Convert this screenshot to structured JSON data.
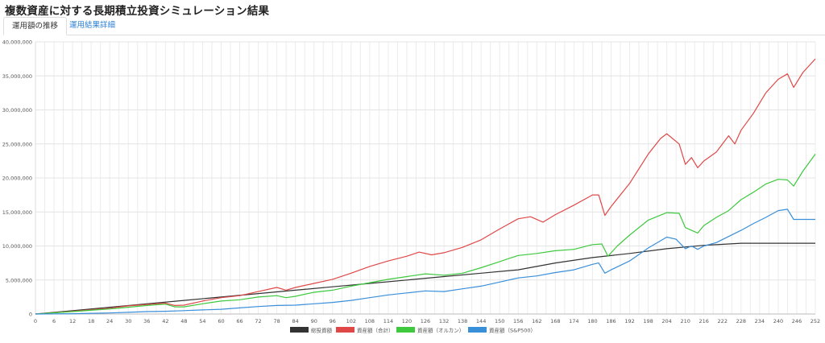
{
  "page": {
    "title": "複数資産に対する長期積立投資シミュレーション結果"
  },
  "tabs": [
    {
      "label": "運用額の推移",
      "active": true
    },
    {
      "label": "運用結果詳細",
      "active": false
    }
  ],
  "chart_data": {
    "type": "line",
    "title": "",
    "xlabel": "",
    "ylabel": "",
    "xlim": [
      0,
      252
    ],
    "ylim": [
      0,
      40000000
    ],
    "x_ticks": [
      0,
      6,
      12,
      18,
      24,
      30,
      36,
      42,
      48,
      54,
      60,
      66,
      72,
      78,
      84,
      90,
      96,
      102,
      108,
      114,
      120,
      126,
      132,
      138,
      144,
      150,
      156,
      162,
      168,
      174,
      180,
      186,
      192,
      198,
      204,
      210,
      216,
      222,
      228,
      234,
      240,
      246,
      252
    ],
    "y_ticks": [
      0,
      5000000,
      10000000,
      15000000,
      20000000,
      25000000,
      30000000,
      35000000,
      40000000
    ],
    "grid": true,
    "legend_position": "bottom",
    "series": [
      {
        "name": "総投資額",
        "color": "#333333",
        "points": [
          [
            0,
            0
          ],
          [
            12,
            500000
          ],
          [
            24,
            1000000
          ],
          [
            36,
            1500000
          ],
          [
            48,
            2000000
          ],
          [
            60,
            2500000
          ],
          [
            72,
            3000000
          ],
          [
            84,
            3500000
          ],
          [
            96,
            4000000
          ],
          [
            108,
            4500000
          ],
          [
            120,
            5000000
          ],
          [
            132,
            5500000
          ],
          [
            144,
            6000000
          ],
          [
            156,
            6500000
          ],
          [
            168,
            7500000
          ],
          [
            180,
            8300000
          ],
          [
            192,
            8900000
          ],
          [
            204,
            9600000
          ],
          [
            216,
            10100000
          ],
          [
            228,
            10400000
          ],
          [
            240,
            10400000
          ],
          [
            252,
            10400000
          ]
        ]
      },
      {
        "name": "資産額（合計）",
        "color": "#e04848",
        "points": [
          [
            0,
            0
          ],
          [
            12,
            400000
          ],
          [
            24,
            850000
          ],
          [
            30,
            1200000
          ],
          [
            36,
            1400000
          ],
          [
            42,
            1600000
          ],
          [
            45,
            1250000
          ],
          [
            48,
            1300000
          ],
          [
            54,
            1900000
          ],
          [
            60,
            2400000
          ],
          [
            66,
            2700000
          ],
          [
            72,
            3300000
          ],
          [
            78,
            3900000
          ],
          [
            81,
            3500000
          ],
          [
            84,
            3900000
          ],
          [
            90,
            4500000
          ],
          [
            96,
            5100000
          ],
          [
            102,
            6000000
          ],
          [
            108,
            7000000
          ],
          [
            114,
            7800000
          ],
          [
            120,
            8500000
          ],
          [
            124,
            9100000
          ],
          [
            128,
            8700000
          ],
          [
            132,
            9000000
          ],
          [
            138,
            9800000
          ],
          [
            144,
            10900000
          ],
          [
            150,
            12500000
          ],
          [
            156,
            14000000
          ],
          [
            160,
            14300000
          ],
          [
            164,
            13500000
          ],
          [
            168,
            14600000
          ],
          [
            174,
            16000000
          ],
          [
            180,
            17500000
          ],
          [
            182,
            17500000
          ],
          [
            184,
            14500000
          ],
          [
            186,
            15800000
          ],
          [
            192,
            19200000
          ],
          [
            198,
            23500000
          ],
          [
            202,
            25800000
          ],
          [
            204,
            26500000
          ],
          [
            208,
            25000000
          ],
          [
            210,
            22000000
          ],
          [
            212,
            23000000
          ],
          [
            214,
            21500000
          ],
          [
            216,
            22500000
          ],
          [
            220,
            23800000
          ],
          [
            224,
            26200000
          ],
          [
            226,
            25000000
          ],
          [
            228,
            27000000
          ],
          [
            232,
            29500000
          ],
          [
            236,
            32500000
          ],
          [
            240,
            34500000
          ],
          [
            243,
            35300000
          ],
          [
            245,
            33300000
          ],
          [
            248,
            35500000
          ],
          [
            252,
            37500000
          ]
        ]
      },
      {
        "name": "資産額（オルカン）",
        "color": "#3ec93e",
        "points": [
          [
            0,
            0
          ],
          [
            12,
            350000
          ],
          [
            24,
            750000
          ],
          [
            30,
            1000000
          ],
          [
            36,
            1250000
          ],
          [
            42,
            1450000
          ],
          [
            45,
            1050000
          ],
          [
            48,
            1050000
          ],
          [
            54,
            1500000
          ],
          [
            60,
            1900000
          ],
          [
            66,
            2100000
          ],
          [
            72,
            2500000
          ],
          [
            78,
            2700000
          ],
          [
            81,
            2400000
          ],
          [
            84,
            2600000
          ],
          [
            90,
            3200000
          ],
          [
            96,
            3500000
          ],
          [
            102,
            4100000
          ],
          [
            108,
            4600000
          ],
          [
            114,
            5100000
          ],
          [
            120,
            5500000
          ],
          [
            126,
            5900000
          ],
          [
            132,
            5700000
          ],
          [
            138,
            6000000
          ],
          [
            144,
            6800000
          ],
          [
            150,
            7700000
          ],
          [
            156,
            8600000
          ],
          [
            162,
            8900000
          ],
          [
            168,
            9300000
          ],
          [
            174,
            9500000
          ],
          [
            180,
            10200000
          ],
          [
            183,
            10300000
          ],
          [
            185,
            8500000
          ],
          [
            188,
            10000000
          ],
          [
            192,
            11600000
          ],
          [
            198,
            13800000
          ],
          [
            204,
            14900000
          ],
          [
            208,
            14800000
          ],
          [
            210,
            12700000
          ],
          [
            212,
            12300000
          ],
          [
            214,
            11900000
          ],
          [
            216,
            13000000
          ],
          [
            220,
            14200000
          ],
          [
            224,
            15200000
          ],
          [
            228,
            16800000
          ],
          [
            232,
            17900000
          ],
          [
            236,
            19100000
          ],
          [
            240,
            19800000
          ],
          [
            243,
            19700000
          ],
          [
            245,
            18800000
          ],
          [
            248,
            21000000
          ],
          [
            252,
            23500000
          ]
        ]
      },
      {
        "name": "資産額（S&P500）",
        "color": "#3a8fd9",
        "points": [
          [
            0,
            0
          ],
          [
            12,
            50000
          ],
          [
            24,
            150000
          ],
          [
            30,
            250000
          ],
          [
            36,
            350000
          ],
          [
            42,
            400000
          ],
          [
            48,
            500000
          ],
          [
            54,
            600000
          ],
          [
            60,
            700000
          ],
          [
            66,
            900000
          ],
          [
            72,
            1100000
          ],
          [
            78,
            1250000
          ],
          [
            84,
            1300000
          ],
          [
            90,
            1500000
          ],
          [
            96,
            1700000
          ],
          [
            102,
            2000000
          ],
          [
            108,
            2400000
          ],
          [
            114,
            2800000
          ],
          [
            120,
            3100000
          ],
          [
            126,
            3400000
          ],
          [
            132,
            3300000
          ],
          [
            138,
            3700000
          ],
          [
            144,
            4100000
          ],
          [
            150,
            4700000
          ],
          [
            156,
            5300000
          ],
          [
            162,
            5600000
          ],
          [
            168,
            6100000
          ],
          [
            174,
            6500000
          ],
          [
            180,
            7300000
          ],
          [
            182,
            7500000
          ],
          [
            184,
            6000000
          ],
          [
            186,
            6500000
          ],
          [
            192,
            7800000
          ],
          [
            198,
            9700000
          ],
          [
            204,
            11300000
          ],
          [
            207,
            11000000
          ],
          [
            210,
            9600000
          ],
          [
            212,
            10000000
          ],
          [
            214,
            9500000
          ],
          [
            216,
            10000000
          ],
          [
            220,
            10500000
          ],
          [
            224,
            11400000
          ],
          [
            228,
            12300000
          ],
          [
            232,
            13300000
          ],
          [
            236,
            14200000
          ],
          [
            240,
            15200000
          ],
          [
            243,
            15400000
          ],
          [
            245,
            13900000
          ],
          [
            252,
            13900000
          ]
        ]
      }
    ]
  }
}
